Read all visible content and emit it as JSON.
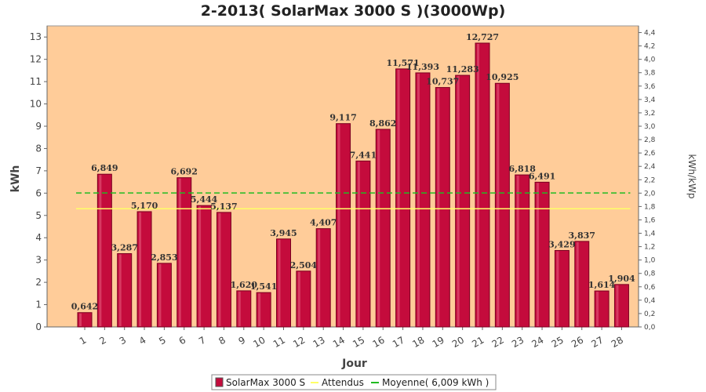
{
  "title": "2-2013( SolarMax 3000 S )(3000Wp)",
  "colors": {
    "plot_bg": "#ffcc99",
    "bar_fill": "#c40b3c",
    "bar_edge": "#7a0020",
    "attendus": "#ffff66",
    "moyenne": "#22bb22"
  },
  "chart_data": {
    "type": "bar",
    "title": "2-2013( SolarMax 3000 S )(3000Wp)",
    "xlabel": "Jour",
    "ylabel": "kWh",
    "y2label": "kWh/kWp",
    "ylim": [
      0,
      13.5
    ],
    "y2lim": [
      0,
      4.5
    ],
    "yticks": [
      "0",
      "1",
      "2",
      "3",
      "4",
      "5",
      "6",
      "7",
      "8",
      "9",
      "10",
      "11",
      "12",
      "13"
    ],
    "y2ticks": [
      "0,0",
      "0,2",
      "0,4",
      "0,6",
      "0,8",
      "1,0",
      "1,2",
      "1,4",
      "1,6",
      "1,8",
      "2,0",
      "2,2",
      "2,4",
      "2,6",
      "2,8",
      "3,0",
      "3,2",
      "3,4",
      "3,6",
      "3,8",
      "4,0",
      "4,2",
      "4,4"
    ],
    "categories": [
      "1",
      "2",
      "3",
      "4",
      "5",
      "6",
      "7",
      "8",
      "9",
      "10",
      "11",
      "12",
      "13",
      "14",
      "15",
      "16",
      "17",
      "18",
      "19",
      "20",
      "21",
      "22",
      "23",
      "24",
      "25",
      "26",
      "27",
      "28"
    ],
    "series": [
      {
        "name": "SolarMax 3000 S",
        "values": [
          0.642,
          6.849,
          3.287,
          5.17,
          2.853,
          6.692,
          5.444,
          5.137,
          1.62,
          1.541,
          3.945,
          2.504,
          4.407,
          9.117,
          7.441,
          8.862,
          11.571,
          11.393,
          10.737,
          11.283,
          12.727,
          10.925,
          6.818,
          6.491,
          3.429,
          3.837,
          1.614,
          1.904
        ],
        "labels": [
          "0,642",
          "6,849",
          "3,287",
          "5,170",
          "2,853",
          "6,692",
          "5,444",
          "5,137",
          "1,620",
          "1,541",
          "3,945",
          "2,504",
          "4,407",
          "9,117",
          "7,441",
          "8,862",
          "11,571",
          "11,393",
          "10,737",
          "11,283",
          "12,727",
          "10,925",
          "6,818",
          "6,491",
          "3,429",
          "3,837",
          "1,614",
          "1,904"
        ]
      }
    ],
    "attendus": 5.3,
    "moyenne": 6.009,
    "legend": {
      "placement": "bottom",
      "items": [
        "SolarMax 3000 S",
        "Attendus",
        "Moyenne( 6,009 kWh )"
      ]
    },
    "grid": false
  }
}
